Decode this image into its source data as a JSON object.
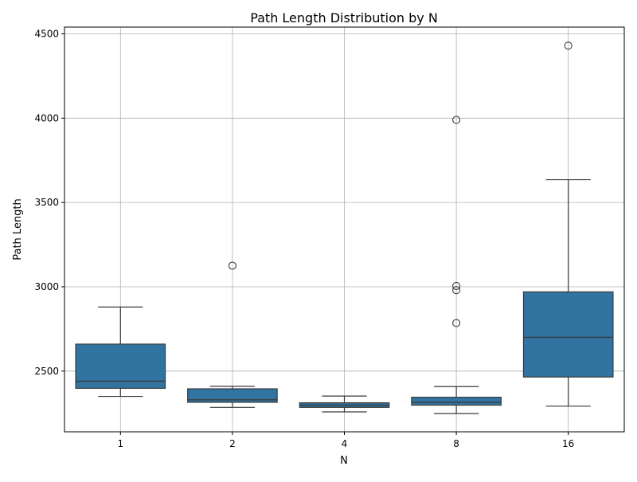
{
  "chart_data": {
    "type": "box",
    "title": "Path Length Distribution by N",
    "xlabel": "N",
    "ylabel": "Path Length",
    "categories": [
      "1",
      "2",
      "4",
      "8",
      "16"
    ],
    "ylim": [
      2140,
      4540
    ],
    "yticks": [
      2500,
      3000,
      3500,
      4000,
      4500
    ],
    "grid": true,
    "box_color": "#3274a1",
    "line_color": "#3a3a3a",
    "boxes": [
      {
        "category": "1",
        "whisker_low": 2350,
        "q1": 2398,
        "median": 2440,
        "q3": 2660,
        "whisker_high": 2880,
        "outliers": []
      },
      {
        "category": "2",
        "whisker_low": 2285,
        "q1": 2315,
        "median": 2330,
        "q3": 2395,
        "whisker_high": 2410,
        "outliers": [
          3125
        ]
      },
      {
        "category": "4",
        "whisker_low": 2258,
        "q1": 2285,
        "median": 2298,
        "q3": 2312,
        "whisker_high": 2352,
        "outliers": []
      },
      {
        "category": "8",
        "whisker_low": 2248,
        "q1": 2298,
        "median": 2315,
        "q3": 2345,
        "whisker_high": 2408,
        "outliers": [
          2785,
          2980,
          3005,
          3990
        ]
      },
      {
        "category": "16",
        "whisker_low": 2292,
        "q1": 2465,
        "median": 2700,
        "q3": 2970,
        "whisker_high": 3635,
        "outliers": [
          4430
        ]
      }
    ]
  }
}
